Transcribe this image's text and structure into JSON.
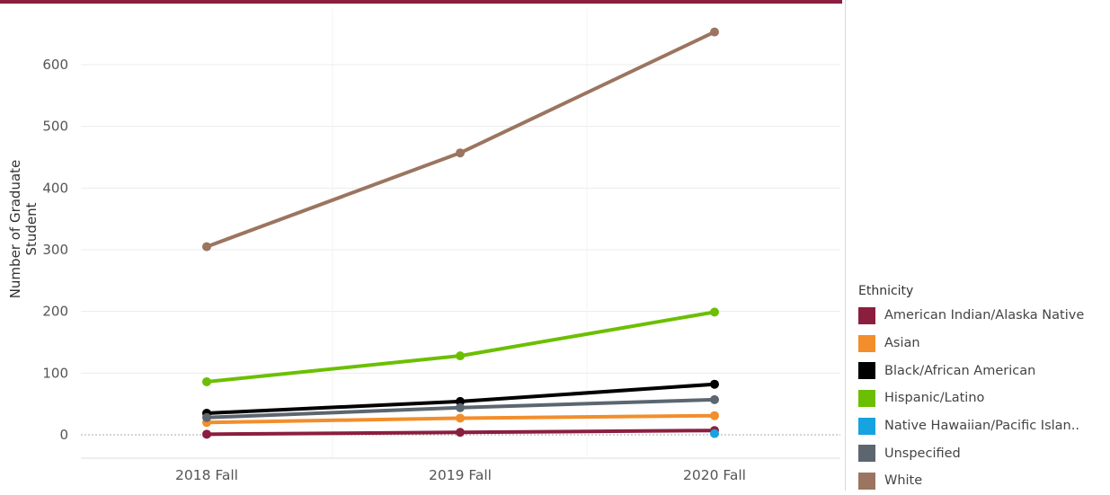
{
  "colors": {
    "accent_bar": "#8b1e3f",
    "grid": "#ececec",
    "zero_line": "#aaaaaa"
  },
  "chart_data": {
    "type": "line",
    "xlabel": "",
    "ylabel": "Number of Graduate Student",
    "categories": [
      "2018 Fall",
      "2019 Fall",
      "2020 Fall"
    ],
    "ylim": [
      -35,
      680
    ],
    "yticks": [
      0,
      100,
      200,
      300,
      400,
      500,
      600
    ],
    "grid": true,
    "legend_title": "Ethnicity",
    "legend_position": "right",
    "series": [
      {
        "name": "American Indian/Alaska Native",
        "color": "#8b1e3f",
        "values": [
          1,
          4,
          7
        ]
      },
      {
        "name": "Asian",
        "color": "#f28e2b",
        "values": [
          20,
          27,
          31
        ]
      },
      {
        "name": "Black/African American",
        "color": "#000000",
        "values": [
          35,
          54,
          82
        ]
      },
      {
        "name": "Hispanic/Latino",
        "color": "#6cbf00",
        "values": [
          86,
          128,
          199
        ]
      },
      {
        "name": "Native Hawaiian/Pacific Islan..",
        "color": "#17a2e0",
        "values": [
          null,
          null,
          2
        ]
      },
      {
        "name": "Unspecified",
        "color": "#5c6670",
        "values": [
          28,
          44,
          57
        ]
      },
      {
        "name": "White",
        "color": "#9b7560",
        "values": [
          305,
          457,
          653
        ]
      }
    ]
  }
}
